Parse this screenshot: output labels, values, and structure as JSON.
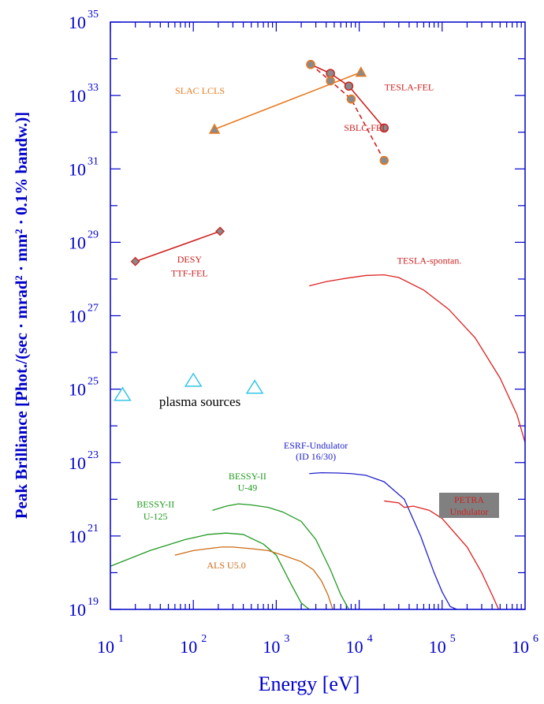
{
  "chart_data": {
    "type": "line",
    "xlabel": "Energy [eV]",
    "ylabel": "Peak Brilliance [Phot./(sec · mrad² · mm² · 0.1% bandw.)]",
    "xscale": "log",
    "yscale": "log",
    "xlim": [
      10,
      1000000
    ],
    "ylim": [
      1e+19,
      1e+35
    ],
    "x_ticks": [
      "10",
      "10",
      "10",
      "10",
      "10",
      "10"
    ],
    "x_tick_exps": [
      "1",
      "2",
      "3",
      "4",
      "5",
      "6"
    ],
    "y_ticks": [
      "10",
      "10",
      "10",
      "10",
      "10",
      "10",
      "10",
      "10",
      "10"
    ],
    "y_tick_exps": [
      "19",
      "21",
      "23",
      "25",
      "27",
      "29",
      "31",
      "33",
      "35"
    ],
    "colors": {
      "axis": "#0000cc",
      "slac": "#e87a1e",
      "fel_red": "#cc2222",
      "spont_red": "#dd2222",
      "green": "#229922",
      "als": "#cc6a14",
      "esrf": "#2222cc",
      "plasma": "#33c6e6",
      "marker_fill": "#8a8a8a",
      "petra_box": "#808080"
    },
    "series": [
      {
        "name": "SLAC LCLS",
        "style": "line-triangle",
        "x": [
          180,
          10500
        ],
        "y": [
          1.2e+32,
          4.3e+33
        ]
      },
      {
        "name": "TESLA-FEL",
        "style": "line-circle",
        "x": [
          2600,
          4500,
          7500,
          20000
        ],
        "y": [
          7e+33,
          4e+33,
          1.8e+33,
          1.3e+32
        ]
      },
      {
        "name": "SBLC-FEL",
        "style": "dashed-circle",
        "x": [
          2600,
          4500,
          8000,
          20000
        ],
        "y": [
          7e+33,
          2.5e+33,
          8e+32,
          1.7e+31
        ]
      },
      {
        "name": "DESY TTF-FEL",
        "style": "line-diamond",
        "x": [
          20,
          210
        ],
        "y": [
          3e+28,
          2e+29
        ]
      },
      {
        "name": "TESLA-spontan.",
        "style": "curve",
        "x": [
          2500,
          4000,
          7000,
          12000,
          20000,
          30000,
          60000,
          120000,
          250000,
          500000,
          800000,
          1000000
        ],
        "y": [
          6.5e+27,
          8.5e+27,
          1.05e+28,
          1.25e+28,
          1.3e+28,
          1.1e+28,
          5e+27,
          1.5e+27,
          2.5e+26,
          2e+25,
          2e+24,
          3.5e+23
        ]
      },
      {
        "name": "ESRF-Undulator (ID 16/30)",
        "style": "curve",
        "x": [
          2500,
          3500,
          5500,
          8000,
          12000,
          20000,
          35000,
          55000,
          80000,
          100000,
          125000,
          150000
        ],
        "y": [
          5e+22,
          5.3e+22,
          5.2e+22,
          5e+22,
          4.5e+22,
          3e+22,
          1e+22,
          1e+21,
          1e+20,
          3e+19,
          1.2e+19,
          1e+19
        ]
      },
      {
        "name": "PETRA Undulator",
        "style": "curve",
        "x": [
          20000,
          30000,
          35000,
          45000,
          70000,
          100000,
          200000,
          300000,
          400000,
          480000
        ],
        "y": [
          9e+21,
          8e+21,
          6e+21,
          6.5e+21,
          5e+21,
          3e+21,
          5e+20,
          1e+20,
          2.5e+19,
          1e+19
        ]
      },
      {
        "name": "BESSY-II U-49",
        "style": "curve",
        "x": [
          170,
          250,
          350,
          500,
          800,
          1200,
          2000,
          3000,
          4500,
          6000,
          7500
        ],
        "y": [
          5e+21,
          6.5e+21,
          7.5e+21,
          7e+21,
          6e+21,
          4.5e+21,
          2.5e+21,
          8e+20,
          1.2e+20,
          2.5e+19,
          1e+19
        ]
      },
      {
        "name": "BESSY-II U-125",
        "style": "curve",
        "x": [
          10,
          30,
          80,
          150,
          250,
          400,
          700,
          1000,
          1500,
          2000,
          2500
        ],
        "y": [
          1.5e+20,
          4e+20,
          8e+20,
          1.1e+21,
          1.2e+21,
          1.1e+21,
          6e+20,
          3e+20,
          5e+19,
          1.5e+19,
          1e+19
        ]
      },
      {
        "name": "ALS U5.0",
        "style": "curve",
        "x": [
          60,
          100,
          150,
          220,
          300,
          500,
          800,
          1200,
          2000,
          2800,
          3500,
          4200,
          4800
        ],
        "y": [
          3e+20,
          4e+20,
          4.5e+20,
          5e+20,
          5e+20,
          4.5e+20,
          4e+20,
          3e+20,
          2e+20,
          1.2e+20,
          6e+19,
          2.5e+19,
          1e+19
        ]
      },
      {
        "name": "plasma sources",
        "style": "open-triangle",
        "x": [
          14,
          100,
          550
        ],
        "y": [
          7e+24,
          1.7e+25,
          1.1e+25
        ]
      }
    ],
    "annotations": [
      {
        "text": "SLAC LCLS",
        "x": 120,
        "y": 1.1e+33,
        "color": "#e87a1e"
      },
      {
        "text": "TESLA-FEL",
        "x": 40000,
        "y": 1.4e+33,
        "color": "#cc2222"
      },
      {
        "text": "SBLC-FEL",
        "x": 12000,
        "y": 1.1e+32,
        "color": "#cc2222"
      },
      {
        "text": "DESY",
        "x": 90,
        "y": 2.8e+28,
        "color": "#cc2222"
      },
      {
        "text": "TTF-FEL",
        "x": 90,
        "y": 1.2e+28,
        "color": "#cc2222"
      },
      {
        "text": "TESLA-spontan.",
        "x": 70000,
        "y": 2.6e+28,
        "color": "#cc2222"
      },
      {
        "text": "ESRF-Undulator",
        "x": 3000,
        "y": 2.4e+23,
        "color": "#2222cc"
      },
      {
        "text": "(ID 16/30)",
        "x": 3000,
        "y": 1.2e+23,
        "color": "#2222cc"
      },
      {
        "text": "BESSY-II",
        "x": 450,
        "y": 3.5e+22,
        "color": "#229922"
      },
      {
        "text": "U-49",
        "x": 450,
        "y": 1.7e+22,
        "color": "#229922"
      },
      {
        "text": "BESSY-II",
        "x": 35,
        "y": 6e+21,
        "color": "#229922"
      },
      {
        "text": "U-125",
        "x": 35,
        "y": 2.8e+21,
        "color": "#229922"
      },
      {
        "text": "ALS U5.0",
        "x": 250,
        "y": 1.3e+20,
        "color": "#cc6a14"
      },
      {
        "text": "plasma sources",
        "x": 120,
        "y": 3.5e+24,
        "color": "#000000",
        "big": true
      }
    ],
    "petra_label": [
      "PETRA",
      "Undulator"
    ]
  }
}
